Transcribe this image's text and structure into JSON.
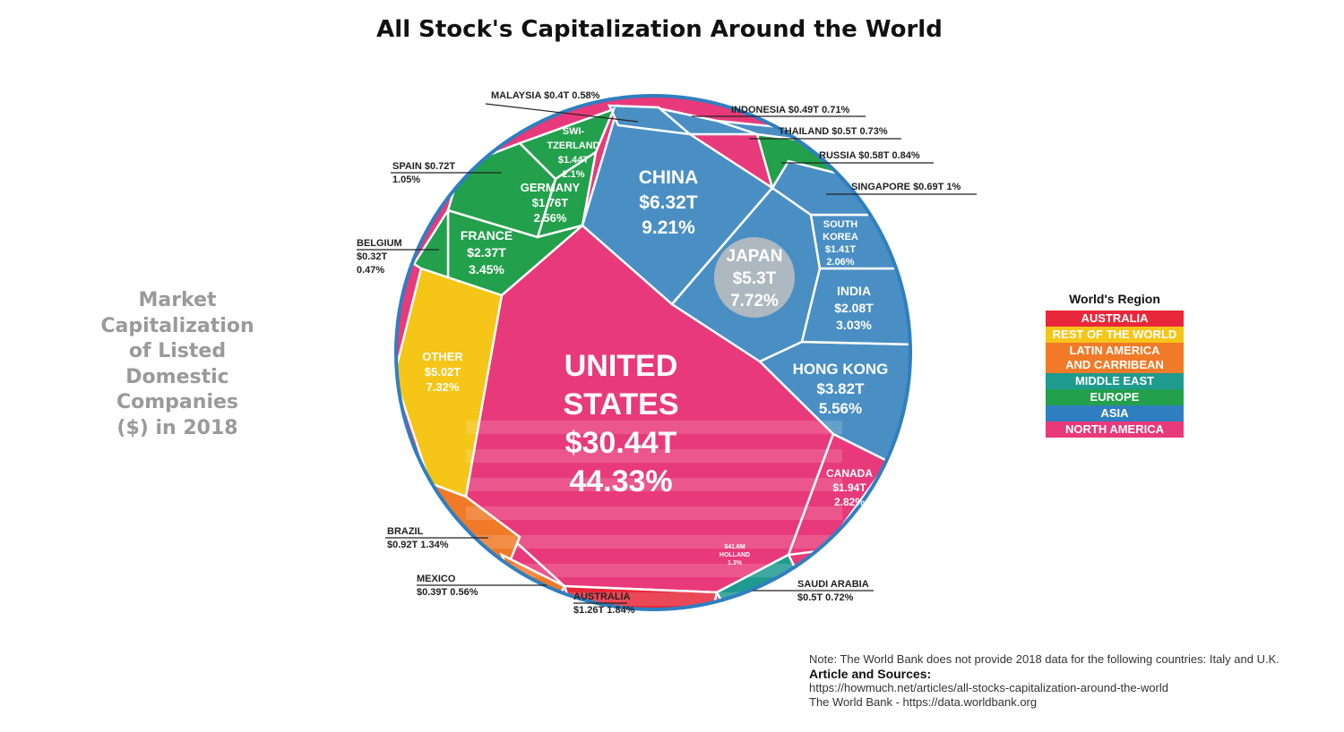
{
  "title": "All Stock's Capitalization Around the World",
  "side_label": "Market\nCapitalization\nof Listed\nDomestic\nCompanies\n($) in 2018",
  "legend": {
    "title": "World's Region",
    "items": [
      {
        "label": "AUSTRALIA",
        "color": "#e8283a"
      },
      {
        "label": "REST OF THE WORLD",
        "color": "#f5c518"
      },
      {
        "label": "LATIN AMERICA\nAND CARRIBEAN",
        "color": "#f07a28"
      },
      {
        "label": "MIDDLE EAST",
        "color": "#1f9a8f"
      },
      {
        "label": "EUROPE",
        "color": "#23a04c"
      },
      {
        "label": "ASIA",
        "color": "#2f7fc0"
      },
      {
        "label": "NORTH AMERICA",
        "color": "#e83a7a"
      }
    ]
  },
  "notes": {
    "note": "Note: The World Bank does not provide 2018 data for the following countries: Italy and U.K.",
    "sources_heading": "Article and Sources:",
    "source1": "https://howmuch.net/articles/all-stocks-capitalization-around-the-world",
    "source2": "The World Bank - https://data.worldbank.org"
  },
  "colors": {
    "north_america": "#e83a7a",
    "asia": "#4a8fc4",
    "europe": "#23a04c",
    "rest": "#f5c518",
    "latin": "#f07a28",
    "middle_east": "#1f9a8f",
    "australia": "#e8283a",
    "outline_asia": "#2f7fc0"
  },
  "chart_data": {
    "type": "voronoi-treemap",
    "title": "All Stock's Capitalization Around the World",
    "unit": "$ trillions",
    "countries": [
      {
        "name": "UNITED STATES",
        "value_label": "$30.44T",
        "pct_label": "44.33%",
        "value": 30.44,
        "pct": 44.33,
        "region": "NORTH AMERICA"
      },
      {
        "name": "CHINA",
        "value_label": "$6.32T",
        "pct_label": "9.21%",
        "value": 6.32,
        "pct": 9.21,
        "region": "ASIA"
      },
      {
        "name": "JAPAN",
        "value_label": "$5.3T",
        "pct_label": "7.72%",
        "value": 5.3,
        "pct": 7.72,
        "region": "ASIA"
      },
      {
        "name": "OTHER",
        "value_label": "$5.02T",
        "pct_label": "7.32%",
        "value": 5.02,
        "pct": 7.32,
        "region": "REST OF THE WORLD"
      },
      {
        "name": "HONG KONG",
        "value_label": "$3.82T",
        "pct_label": "5.56%",
        "value": 3.82,
        "pct": 5.56,
        "region": "ASIA"
      },
      {
        "name": "FRANCE",
        "value_label": "$2.37T",
        "pct_label": "3.45%",
        "value": 2.37,
        "pct": 3.45,
        "region": "EUROPE"
      },
      {
        "name": "INDIA",
        "value_label": "$2.08T",
        "pct_label": "3.03%",
        "value": 2.08,
        "pct": 3.03,
        "region": "ASIA"
      },
      {
        "name": "CANADA",
        "value_label": "$1.94T",
        "pct_label": "2.82%",
        "value": 1.94,
        "pct": 2.82,
        "region": "NORTH AMERICA"
      },
      {
        "name": "GERMANY",
        "value_label": "$1.76T",
        "pct_label": "2.56%",
        "value": 1.76,
        "pct": 2.56,
        "region": "EUROPE"
      },
      {
        "name": "SWI-TZERLAND",
        "value_label": "$1.44T",
        "pct_label": "2.1%",
        "value": 1.44,
        "pct": 2.1,
        "region": "EUROPE"
      },
      {
        "name": "SOUTH KOREA",
        "value_label": "$1.41T",
        "pct_label": "2.06%",
        "value": 1.41,
        "pct": 2.06,
        "region": "ASIA"
      },
      {
        "name": "AUSTRALIA",
        "value_label": "$1.26T",
        "pct_label": "1.84%",
        "value": 1.26,
        "pct": 1.84,
        "region": "AUSTRALIA"
      },
      {
        "name": "BRAZIL",
        "value_label": "$0.92T",
        "pct_label": "1.34%",
        "value": 0.92,
        "pct": 1.34,
        "region": "LATIN AMERICA AND CARRIBEAN"
      },
      {
        "name": "SPAIN",
        "value_label": "$0.72T",
        "pct_label": "1.05%",
        "value": 0.72,
        "pct": 1.05,
        "region": "EUROPE"
      },
      {
        "name": "SINGAPORE",
        "value_label": "$0.69T",
        "pct_label": "1%",
        "value": 0.69,
        "pct": 1.0,
        "region": "ASIA"
      },
      {
        "name": "RUSSIA",
        "value_label": "$0.58T",
        "pct_label": "0.84%",
        "value": 0.58,
        "pct": 0.84,
        "region": "EUROPE"
      },
      {
        "name": "THAILAND",
        "value_label": "$0.5T",
        "pct_label": "0.73%",
        "value": 0.5,
        "pct": 0.73,
        "region": "ASIA"
      },
      {
        "name": "SAUDI ARABIA",
        "value_label": "$0.5T",
        "pct_label": "0.72%",
        "value": 0.5,
        "pct": 0.72,
        "region": "MIDDLE EAST"
      },
      {
        "name": "INDONESIA",
        "value_label": "$0.49T",
        "pct_label": "0.71%",
        "value": 0.49,
        "pct": 0.71,
        "region": "ASIA"
      },
      {
        "name": "MALAYSIA",
        "value_label": "$0.4T",
        "pct_label": "0.58%",
        "value": 0.4,
        "pct": 0.58,
        "region": "ASIA"
      },
      {
        "name": "MEXICO",
        "value_label": "$0.39T",
        "pct_label": "0.56%",
        "value": 0.39,
        "pct": 0.56,
        "region": "LATIN AMERICA AND CARRIBEAN"
      },
      {
        "name": "BELGIUM",
        "value_label": "$0.32T",
        "pct_label": "0.47%",
        "value": 0.32,
        "pct": 0.47,
        "region": "EUROPE"
      },
      {
        "name": "HOLLAND",
        "value_label": "$41.6M",
        "pct_label": "1.3%",
        "value": null,
        "pct": 1.3,
        "region": "EUROPE"
      }
    ]
  }
}
